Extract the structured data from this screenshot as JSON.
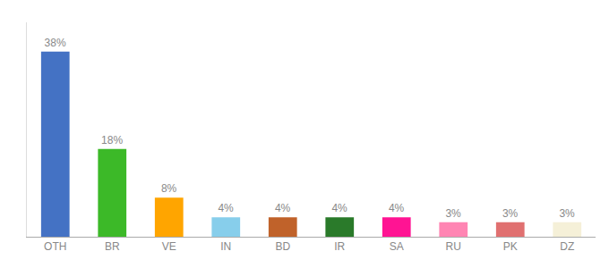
{
  "chart_data": {
    "type": "bar",
    "categories": [
      "OTH",
      "BR",
      "VE",
      "IN",
      "BD",
      "IR",
      "SA",
      "RU",
      "PK",
      "DZ"
    ],
    "values": [
      38,
      18,
      8,
      4,
      4,
      4,
      4,
      3,
      3,
      3
    ],
    "value_labels": [
      "38%",
      "18%",
      "8%",
      "4%",
      "4%",
      "4%",
      "4%",
      "3%",
      "3%",
      "3%"
    ],
    "colors": [
      "#4472C4",
      "#3CB928",
      "#FFA500",
      "#87CEEB",
      "#C0622A",
      "#2A7A2A",
      "#FF1493",
      "#FF85B3",
      "#E07070",
      "#F5F0D8"
    ],
    "ylim": [
      0,
      44
    ],
    "grid": false,
    "data_labels": true,
    "tick_labels": "x"
  }
}
